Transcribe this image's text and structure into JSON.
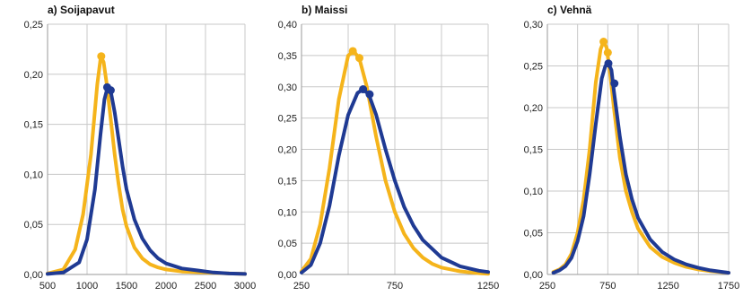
{
  "chart_data": [
    {
      "type": "line",
      "title": "a) Soijapavut",
      "xlim": [
        500,
        3000
      ],
      "ylim": [
        0,
        0.25
      ],
      "x_ticks": [
        500,
        1000,
        1500,
        2000,
        2500,
        3000
      ],
      "x_tick_labels": [
        "500",
        "1000",
        "1500",
        "2000",
        "2500",
        "3000"
      ],
      "y_ticks": [
        0,
        0.05,
        0.1,
        0.15,
        0.2,
        0.25
      ],
      "y_tick_labels": [
        "0,00",
        "0,05",
        "0,10",
        "0,15",
        "0,20",
        "0,25"
      ],
      "grid": true,
      "series": [
        {
          "color": "#F5B41B",
          "x": [
            500,
            700,
            850,
            950,
            1050,
            1130,
            1175,
            1210,
            1250,
            1300,
            1350,
            1400,
            1450,
            1500,
            1600,
            1700,
            1800,
            1900,
            2000,
            2200,
            2500,
            2800,
            3000
          ],
          "y": [
            0.001,
            0.005,
            0.025,
            0.06,
            0.12,
            0.19,
            0.218,
            0.212,
            0.19,
            0.155,
            0.12,
            0.09,
            0.065,
            0.048,
            0.027,
            0.016,
            0.01,
            0.007,
            0.005,
            0.003,
            0.002,
            0.001,
            0.0005
          ],
          "markers": [
            {
              "x": 1180,
              "y": 0.218
            }
          ]
        },
        {
          "color": "#1F3A93",
          "x": [
            500,
            700,
            900,
            1000,
            1100,
            1170,
            1220,
            1260,
            1300,
            1350,
            1400,
            1450,
            1500,
            1600,
            1700,
            1800,
            1900,
            2000,
            2200,
            2400,
            2600,
            2800,
            3000
          ],
          "y": [
            0.0005,
            0.002,
            0.012,
            0.035,
            0.085,
            0.14,
            0.175,
            0.187,
            0.183,
            0.162,
            0.135,
            0.108,
            0.085,
            0.055,
            0.036,
            0.024,
            0.016,
            0.011,
            0.006,
            0.004,
            0.002,
            0.001,
            0.0005
          ],
          "markers": [
            {
              "x": 1255,
              "y": 0.187
            },
            {
              "x": 1300,
              "y": 0.184
            }
          ]
        }
      ]
    },
    {
      "type": "line",
      "title": "b) Maissi",
      "xlim": [
        250,
        1250
      ],
      "ylim": [
        0,
        0.4
      ],
      "x_ticks": [
        250,
        750,
        1250
      ],
      "x_tick_labels": [
        "250",
        "750",
        "1250"
      ],
      "x_grid": [
        250,
        500,
        750,
        1000,
        1250
      ],
      "y_ticks": [
        0,
        0.05,
        0.1,
        0.15,
        0.2,
        0.25,
        0.3,
        0.35,
        0.4
      ],
      "y_tick_labels": [
        "0,00",
        "0,05",
        "0,10",
        "0,15",
        "0,20",
        "0,25",
        "0,30",
        "0,35",
        "0,40"
      ],
      "grid": true,
      "series": [
        {
          "color": "#F5B41B",
          "x": [
            250,
            300,
            350,
            400,
            450,
            500,
            530,
            560,
            600,
            650,
            700,
            750,
            800,
            850,
            900,
            950,
            1000,
            1100,
            1200,
            1250
          ],
          "y": [
            0.005,
            0.025,
            0.08,
            0.17,
            0.28,
            0.35,
            0.357,
            0.345,
            0.3,
            0.22,
            0.15,
            0.1,
            0.065,
            0.042,
            0.027,
            0.017,
            0.011,
            0.005,
            0.002,
            0.001
          ],
          "markers": [
            {
              "x": 525,
              "y": 0.357
            },
            {
              "x": 560,
              "y": 0.346
            }
          ]
        },
        {
          "color": "#1F3A93",
          "x": [
            250,
            300,
            350,
            400,
            450,
            500,
            550,
            580,
            610,
            650,
            700,
            750,
            800,
            850,
            900,
            1000,
            1100,
            1200,
            1250
          ],
          "y": [
            0.003,
            0.015,
            0.05,
            0.11,
            0.19,
            0.255,
            0.29,
            0.296,
            0.288,
            0.255,
            0.2,
            0.15,
            0.108,
            0.078,
            0.055,
            0.027,
            0.013,
            0.006,
            0.004
          ],
          "markers": [
            {
              "x": 580,
              "y": 0.296
            },
            {
              "x": 615,
              "y": 0.288
            }
          ]
        }
      ]
    },
    {
      "type": "line",
      "title": "c) Vehnä",
      "xlim": [
        250,
        1750
      ],
      "ylim": [
        0,
        0.3
      ],
      "x_ticks": [
        250,
        750,
        1250,
        1750
      ],
      "x_tick_labels": [
        "250",
        "750",
        "1250",
        "1750"
      ],
      "x_grid": [
        250,
        500,
        750,
        1000,
        1250,
        1500,
        1750
      ],
      "y_ticks": [
        0,
        0.05,
        0.1,
        0.15,
        0.2,
        0.25,
        0.3
      ],
      "y_tick_labels": [
        "0,00",
        "0,05",
        "0,10",
        "0,15",
        "0,20",
        "0,25",
        "0,30"
      ],
      "grid": true,
      "series": [
        {
          "color": "#F5B41B",
          "x": [
            300,
            350,
            400,
            450,
            500,
            550,
            600,
            650,
            690,
            715,
            740,
            770,
            800,
            850,
            900,
            950,
            1000,
            1100,
            1200,
            1300,
            1400,
            1500,
            1600,
            1750
          ],
          "y": [
            0.003,
            0.006,
            0.012,
            0.025,
            0.05,
            0.09,
            0.15,
            0.23,
            0.27,
            0.279,
            0.272,
            0.24,
            0.2,
            0.14,
            0.1,
            0.075,
            0.055,
            0.033,
            0.021,
            0.014,
            0.009,
            0.006,
            0.004,
            0.002
          ],
          "markers": [
            {
              "x": 715,
              "y": 0.279
            },
            {
              "x": 750,
              "y": 0.266
            }
          ]
        },
        {
          "color": "#1F3A93",
          "x": [
            300,
            350,
            400,
            450,
            500,
            550,
            600,
            650,
            700,
            730,
            755,
            780,
            800,
            850,
            900,
            950,
            1000,
            1100,
            1200,
            1300,
            1400,
            1500,
            1600,
            1750
          ],
          "y": [
            0.002,
            0.005,
            0.01,
            0.02,
            0.04,
            0.07,
            0.12,
            0.18,
            0.235,
            0.25,
            0.253,
            0.245,
            0.22,
            0.165,
            0.12,
            0.09,
            0.068,
            0.042,
            0.027,
            0.018,
            0.012,
            0.008,
            0.005,
            0.002
          ],
          "markers": [
            {
              "x": 755,
              "y": 0.253
            },
            {
              "x": 805,
              "y": 0.229
            }
          ]
        }
      ]
    }
  ]
}
